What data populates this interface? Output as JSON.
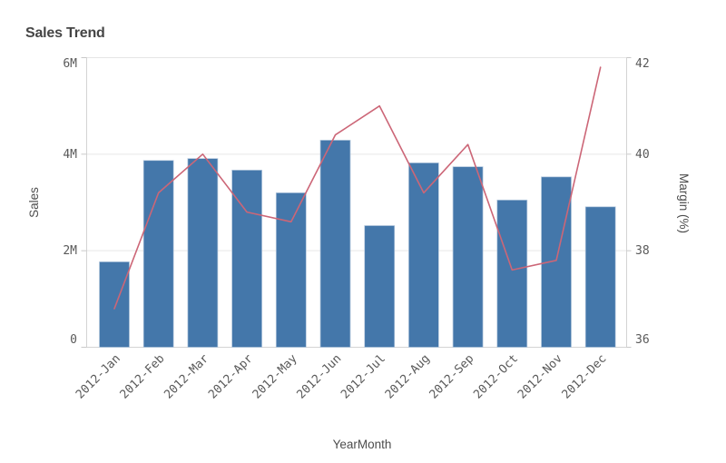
{
  "title": "Sales Trend",
  "colors": {
    "bar": "#4477aa",
    "bar_edge": "#b3c7dd",
    "line": "#cc6677",
    "grid": "#e6e6e6",
    "axis": "#d4d4d4",
    "tick_label": "#595959",
    "axis_title": "#4d4d4d",
    "title": "#454545",
    "background": "#ffffff"
  },
  "chart_data": {
    "type": "combo",
    "title": "Sales Trend",
    "categories": [
      "2012-Jan",
      "2012-Feb",
      "2012-Mar",
      "2012-Apr",
      "2012-May",
      "2012-Jun",
      "2012-Jul",
      "2012-Aug",
      "2012-Sep",
      "2012-Oct",
      "2012-Nov",
      "2012-Dec"
    ],
    "series": [
      {
        "name": "Sales",
        "type": "bar",
        "axis": "left",
        "unit": "M",
        "values": [
          1.77,
          3.87,
          3.91,
          3.67,
          3.2,
          4.29,
          2.52,
          3.82,
          3.74,
          3.05,
          3.53,
          2.91
        ]
      },
      {
        "name": "Margin (%)",
        "type": "line",
        "axis": "right",
        "unit": "%",
        "values": [
          36.8,
          39.2,
          40.0,
          38.8,
          38.6,
          40.4,
          41.0,
          39.2,
          40.2,
          37.6,
          37.8,
          41.8
        ]
      }
    ],
    "left_axis": {
      "label": "Sales",
      "range_millions": [
        0,
        6
      ],
      "ticks": [
        {
          "label": "0",
          "value": 0
        },
        {
          "label": "2M",
          "value": 2
        },
        {
          "label": "4M",
          "value": 4
        },
        {
          "label": "6M",
          "value": 6
        }
      ]
    },
    "right_axis": {
      "label": "Margin (%)",
      "range": [
        36,
        42
      ],
      "ticks": [
        {
          "label": "36",
          "value": 36
        },
        {
          "label": "38",
          "value": 38
        },
        {
          "label": "40",
          "value": 40
        },
        {
          "label": "42",
          "value": 42
        }
      ]
    },
    "x_axis": {
      "label": "YearMonth"
    },
    "grid": true,
    "legend": false
  }
}
